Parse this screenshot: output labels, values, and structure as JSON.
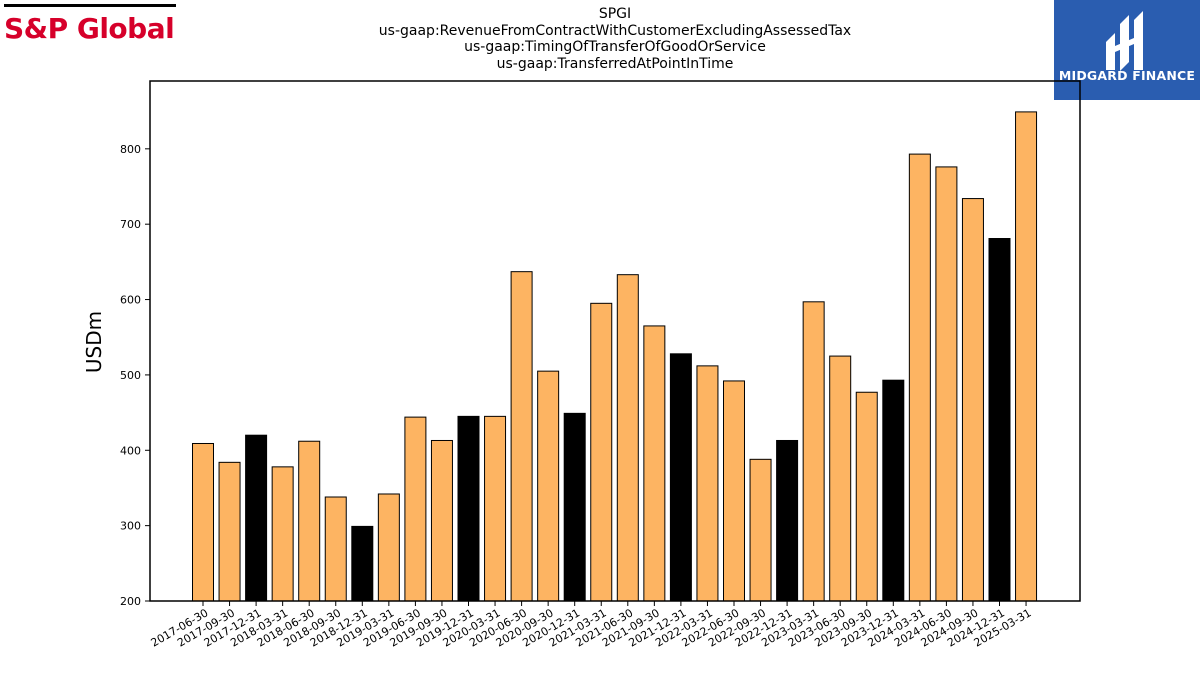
{
  "brand": {
    "name": "S&P Global",
    "color": "#d6002a"
  },
  "partner_logo": {
    "name": "MIDGARD FINANCE",
    "background": "#2a5db0",
    "icon": "midgard-mark-icon"
  },
  "colors": {
    "bar_default": "#fdb462",
    "bar_highlight": "#000000",
    "bar_edge": "#000000"
  },
  "chart_data": {
    "type": "bar",
    "title": [
      "SPGI",
      "us-gaap:RevenueFromContractWithCustomerExcludingAssessedTax",
      "us-gaap:TimingOfTransferOfGoodOrService",
      "us-gaap:TransferredAtPointInTime"
    ],
    "xlabel": "",
    "ylabel": "USDm",
    "ylim": [
      200,
      890
    ],
    "yticks": [
      200,
      300,
      400,
      500,
      600,
      700,
      800
    ],
    "categories": [
      "2017-06-30",
      "2017-09-30",
      "2017-12-31",
      "2018-03-31",
      "2018-06-30",
      "2018-09-30",
      "2018-12-31",
      "2019-03-31",
      "2019-06-30",
      "2019-09-30",
      "2019-12-31",
      "2020-03-31",
      "2020-06-30",
      "2020-09-30",
      "2020-12-31",
      "2021-03-31",
      "2021-06-30",
      "2021-09-30",
      "2021-12-31",
      "2022-03-31",
      "2022-06-30",
      "2022-09-30",
      "2022-12-31",
      "2023-03-31",
      "2023-06-30",
      "2023-09-30",
      "2023-12-31",
      "2024-03-31",
      "2024-06-30",
      "2024-09-30",
      "2024-12-31",
      "2025-03-31"
    ],
    "values": [
      409,
      384,
      420,
      378,
      412,
      338,
      299,
      342,
      444,
      413,
      445,
      445,
      637,
      505,
      449,
      595,
      633,
      565,
      528,
      512,
      492,
      388,
      413,
      597,
      525,
      477,
      493,
      793,
      776,
      734,
      681,
      849
    ],
    "highlight": [
      false,
      false,
      true,
      false,
      false,
      false,
      true,
      false,
      false,
      false,
      true,
      false,
      false,
      false,
      true,
      false,
      false,
      false,
      true,
      false,
      false,
      false,
      true,
      false,
      false,
      false,
      true,
      false,
      false,
      false,
      true,
      false
    ],
    "grid": false,
    "legend": "none"
  }
}
